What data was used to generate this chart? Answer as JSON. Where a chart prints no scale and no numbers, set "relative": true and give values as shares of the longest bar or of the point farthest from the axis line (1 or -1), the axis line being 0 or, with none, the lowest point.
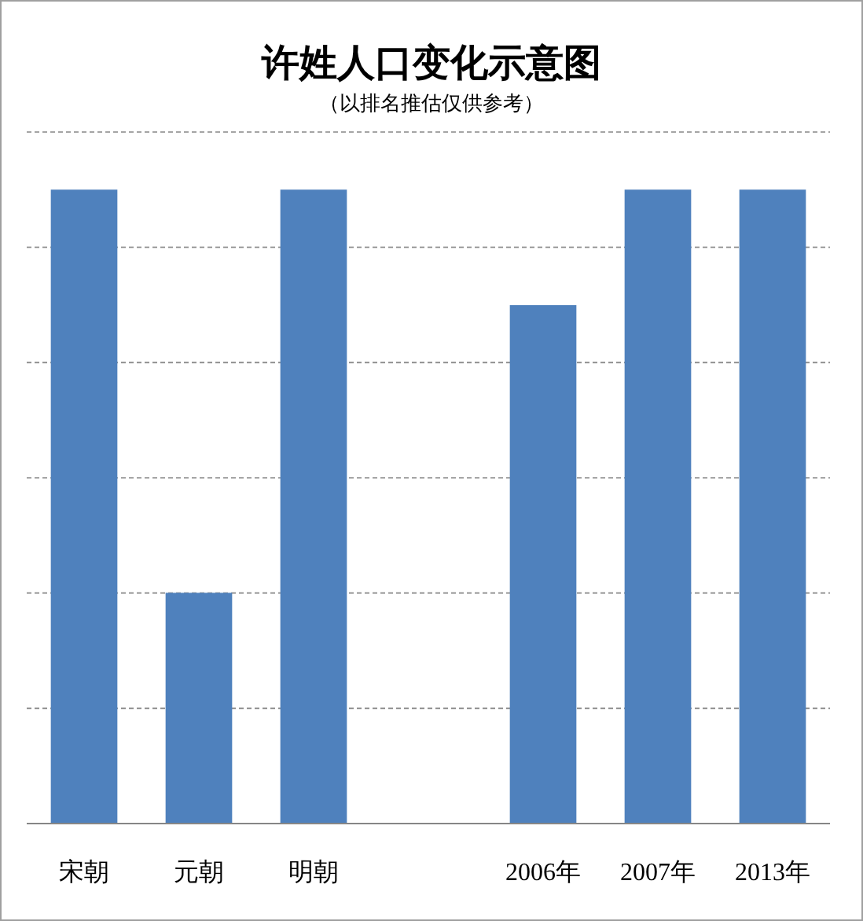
{
  "chart_data": {
    "type": "bar",
    "title": "许姓人口变化示意图",
    "subtitle": "（以排名推估仅供参考）",
    "categories": [
      "宋朝",
      "元朝",
      "明朝",
      null,
      "2006年",
      "2007年",
      "2013年"
    ],
    "values": [
      1,
      0.364,
      1,
      null,
      0.818,
      1,
      1
    ],
    "color": "#4f81bd",
    "relative": true,
    "grid": "y"
  }
}
